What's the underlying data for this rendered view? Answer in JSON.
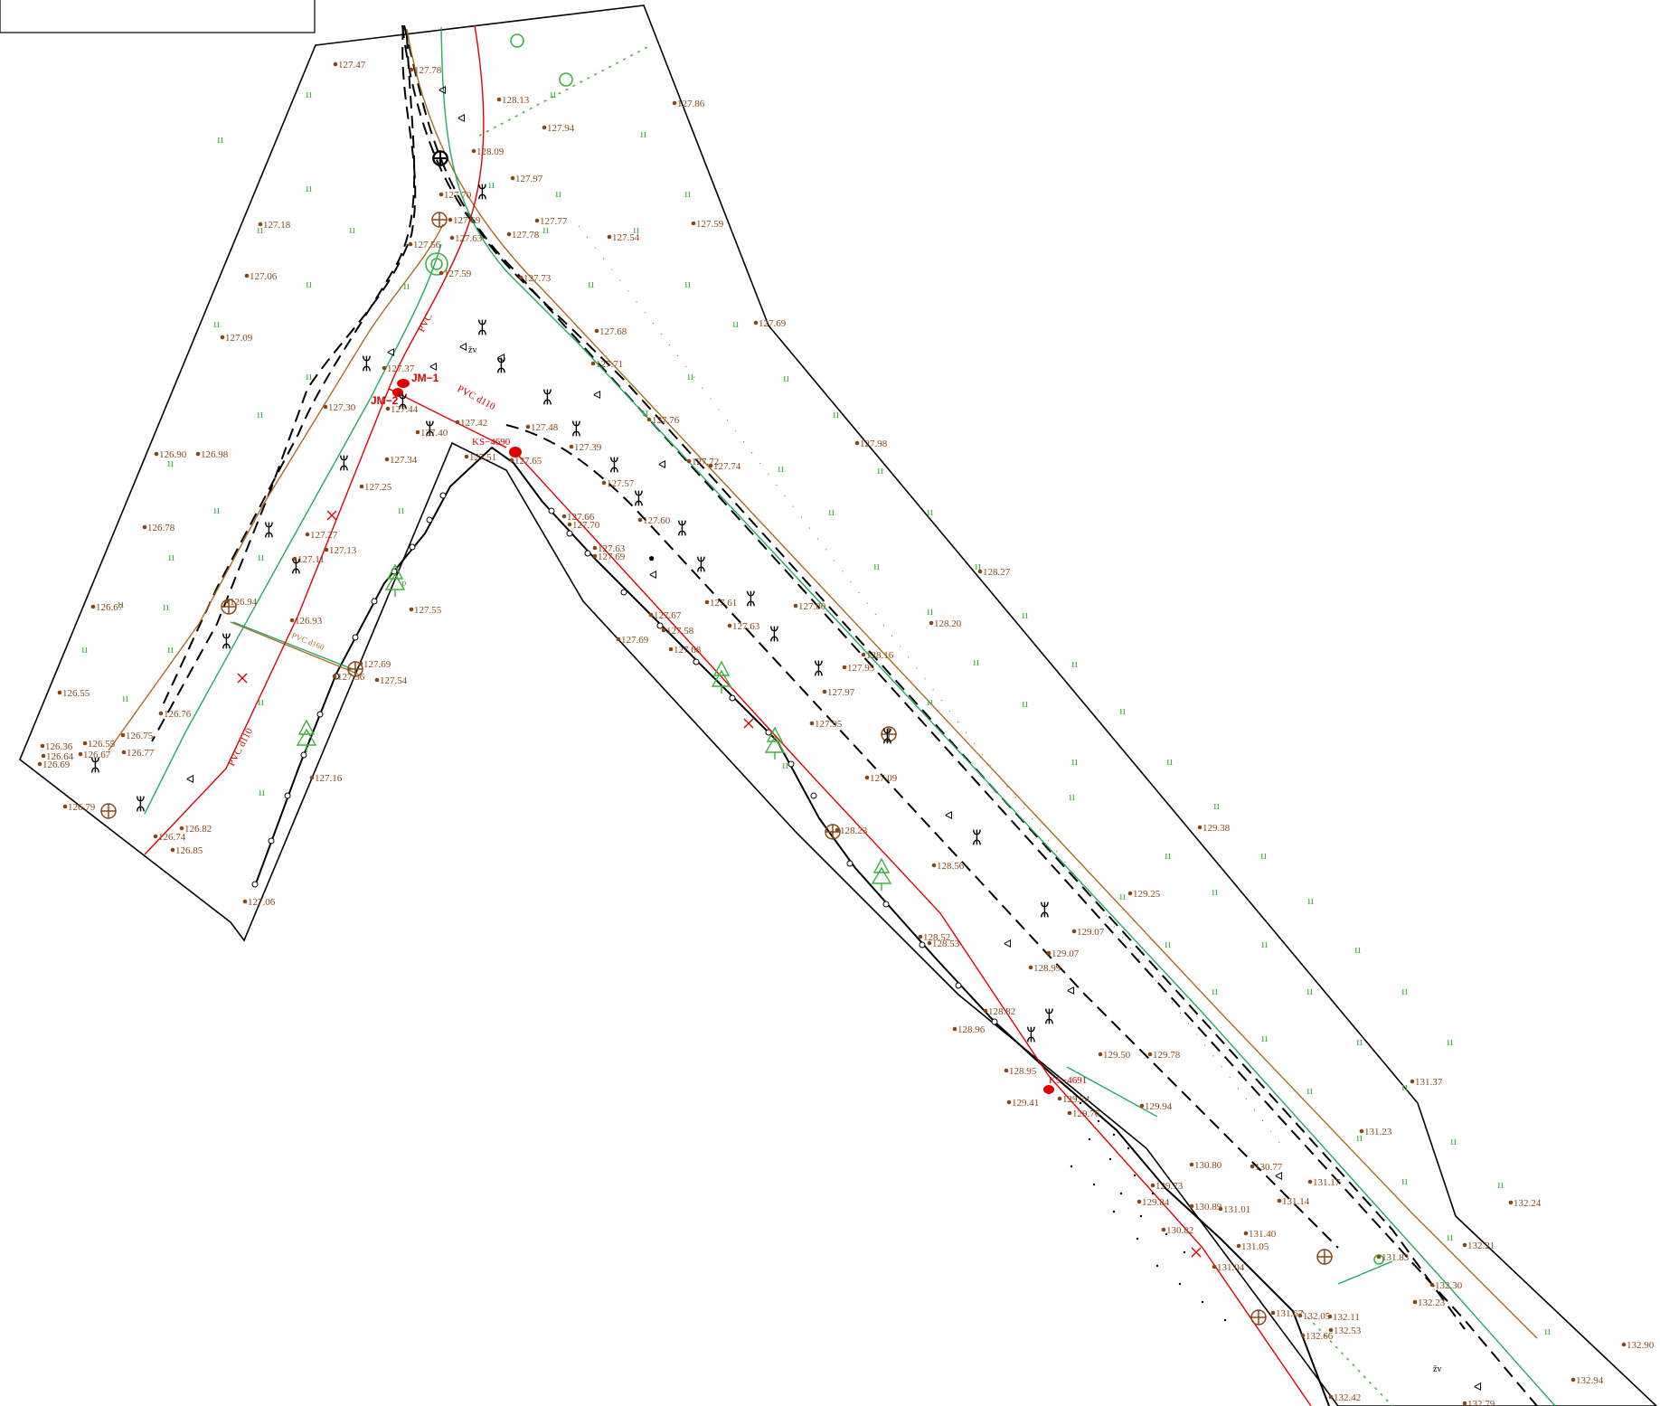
{
  "colors": {
    "boundary": "#000000",
    "gas": "#e00000",
    "water": "#22aa66",
    "sewer": "#b06a1c",
    "points": "#8b4513",
    "vegetation": "#3cb43c"
  },
  "labels": {
    "jm1": "JM−1",
    "jm2": "JM−2",
    "ks4690": "KS−4690",
    "ks4691": "KS−4691",
    "pvc_d110_a": "PVC d110",
    "pvc_d110_b": "PVC d110",
    "pvc_a": "PVC",
    "pvc_d160": "PVC d160",
    "zv_a": "žv",
    "zv_b": "žv",
    "tree_p": "P"
  },
  "spot_heights": [
    "127.47",
    "127.78",
    "128.13",
    "127.94",
    "127.86",
    "128.09",
    "127.97",
    "127.70",
    "127.69",
    "127.77",
    "127.18",
    "127.56",
    "127.63",
    "127.78",
    "127.54",
    "127.59",
    "127.06",
    "127.59",
    "127.73",
    "127.68",
    "127.09",
    "127.69",
    "127.71",
    "127.37",
    "127.44",
    "127.30",
    "127.42",
    "127.48",
    "127.76",
    "127.40",
    "127.65",
    "127.39",
    "127.51",
    "127.34",
    "127.72",
    "127.74",
    "127.98",
    "126.90",
    "126.98",
    "127.25",
    "127.57",
    "127.66",
    "127.70",
    "126.78",
    "127.27",
    "127.13",
    "127.63",
    "127.60",
    "127.69",
    "127.11",
    "128.27",
    "126.67",
    "126.94",
    "127.55",
    "127.61",
    "127.80",
    "127.67",
    "126.93",
    "127.69",
    "127.58",
    "127.63",
    "128.20",
    "127.68",
    "127.69",
    "127.36",
    "127.54",
    "128.16",
    "127.95",
    "126.55",
    "127.97",
    "126.76",
    "127.95",
    "126.36",
    "126.55",
    "126.75",
    "126.64",
    "126.67",
    "126.77",
    "126.69",
    "127.09",
    "127.16",
    "128.23",
    "126.79",
    "126.82",
    "126.85",
    "126.74",
    "129.38",
    "128.56",
    "127.06",
    "129.25",
    "128.52",
    "128.53",
    "129.07",
    "129.07",
    "128.99",
    "128.82",
    "128.96",
    "129.50",
    "129.78",
    "128.95",
    "131.37",
    "129.41",
    "129.74",
    "129.76",
    "129.94",
    "131.23",
    "130.80",
    "130.77",
    "131.17",
    "129.73",
    "129.84",
    "130.89",
    "131.01",
    "131.14",
    "132.24",
    "131.40",
    "131.05",
    "130.82",
    "131.04",
    "132.21",
    "131.83",
    "132.30",
    "132.23",
    "131.67",
    "132.05",
    "132.11",
    "132.53",
    "132.66",
    "132.90",
    "132.94",
    "132.42",
    "132.79"
  ]
}
